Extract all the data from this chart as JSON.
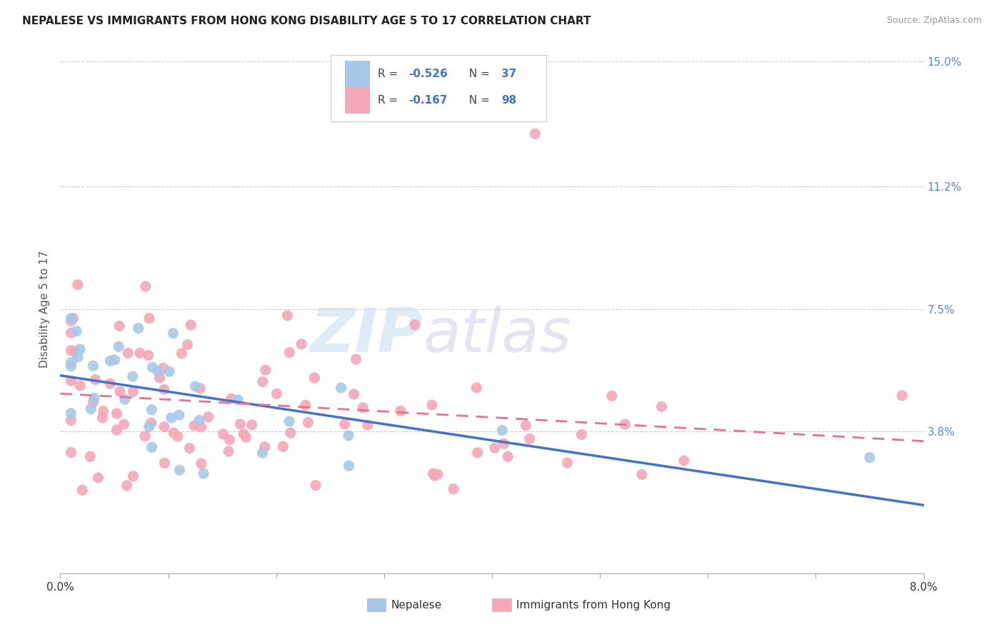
{
  "title": "NEPALESE VS IMMIGRANTS FROM HONG KONG DISABILITY AGE 5 TO 17 CORRELATION CHART",
  "source": "Source: ZipAtlas.com",
  "ylabel": "Disability Age 5 to 17",
  "legend_label_1": "Nepalese",
  "legend_label_2": "Immigrants from Hong Kong",
  "r1": -0.526,
  "n1": 37,
  "r2": -0.167,
  "n2": 98,
  "color1": "#a8c8e8",
  "color2": "#f4a8b8",
  "line_color1": "#4472c4",
  "line_color2": "#e87090",
  "xmin": 0.0,
  "xmax": 0.08,
  "ymin": -0.005,
  "ymax": 0.155,
  "yticks": [
    0.038,
    0.075,
    0.112,
    0.15
  ],
  "ytick_labels": [
    "3.8%",
    "7.5%",
    "11.2%",
    "15.0%"
  ],
  "xticks": [
    0.0,
    0.01,
    0.02,
    0.03,
    0.04,
    0.05,
    0.06,
    0.07,
    0.08
  ],
  "xtick_labels": [
    "0.0%",
    "",
    "",
    "",
    "",
    "",
    "",
    "",
    "8.0%"
  ],
  "watermark_zip": "ZIP",
  "watermark_atlas": "atlas",
  "title_color": "#333333",
  "axis_label_color": "#555555"
}
